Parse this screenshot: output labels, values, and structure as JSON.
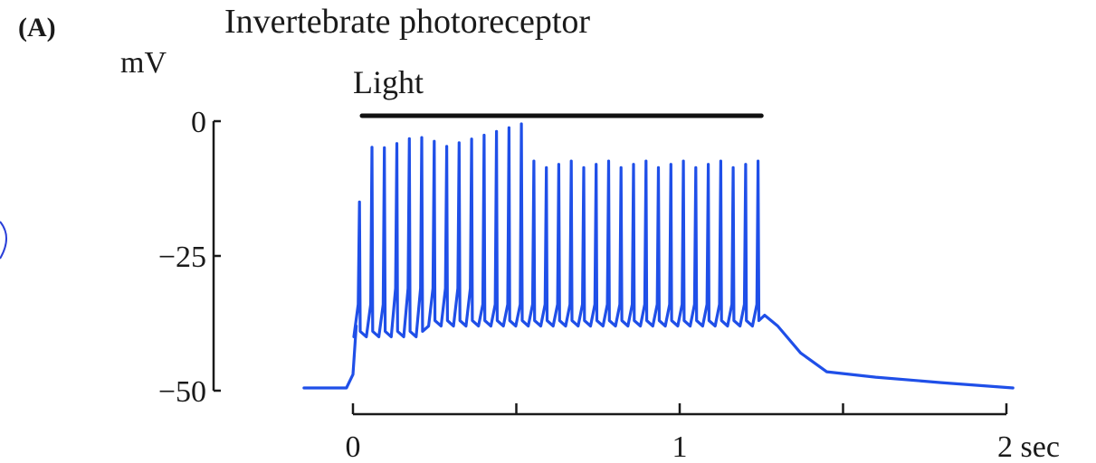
{
  "figure": {
    "panel_label": "(A)",
    "title": "Invertebrate photoreceptor"
  },
  "chart_data": {
    "type": "line",
    "title": "Invertebrate photoreceptor",
    "ylabel": "mV",
    "xlabel": "",
    "x_unit": "sec",
    "ylim": [
      -50,
      0
    ],
    "xlim": [
      -0.2,
      2
    ],
    "y_ticks": [
      {
        "value": 0,
        "label": "0"
      },
      {
        "value": -25,
        "label": "−25"
      },
      {
        "value": -50,
        "label": "−50"
      }
    ],
    "x_ticks": [
      0,
      0.5,
      1,
      1.5,
      2
    ],
    "x_tick_labels": [
      {
        "value": 0,
        "label": "0"
      },
      {
        "value": 1,
        "label": "1"
      },
      {
        "value": 2,
        "label": "2 sec"
      }
    ],
    "stimulus": {
      "label": "Light",
      "start": 0,
      "end": 1.25
    },
    "series": [
      {
        "color": "#1f4fe8",
        "resting_potential": -49.5,
        "plateau_potential": -36,
        "spike_count": 33,
        "first_spike_peak": -15,
        "early_spike_peak": -4,
        "late_spike_peak": -8,
        "stimulus_off_time": 1.25,
        "final_potential": -49.5
      }
    ]
  }
}
